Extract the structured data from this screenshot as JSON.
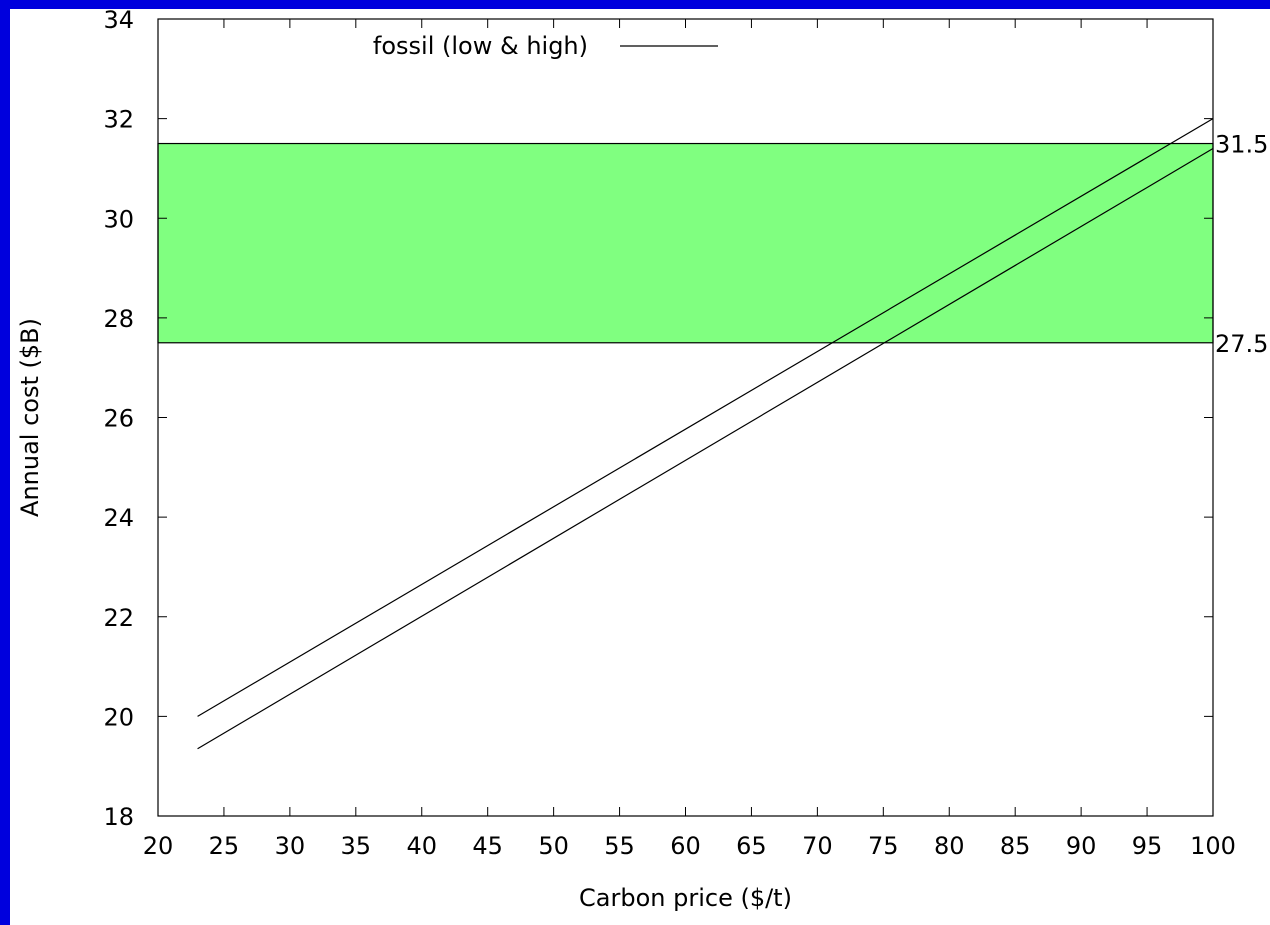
{
  "colors": {
    "background": "#0000dd",
    "plot_background": "#ffffff",
    "band_fill": "#80ff80",
    "line": "#000000"
  },
  "chart_data": {
    "type": "line",
    "title": "",
    "xlabel": "Carbon price ($/t)",
    "ylabel": "Annual cost ($B)",
    "xlim": [
      20,
      100
    ],
    "ylim": [
      18,
      34
    ],
    "x_ticks": [
      20,
      25,
      30,
      35,
      40,
      45,
      50,
      55,
      60,
      65,
      70,
      75,
      80,
      85,
      90,
      95,
      100
    ],
    "y_ticks": [
      18,
      20,
      22,
      24,
      26,
      28,
      30,
      32,
      34
    ],
    "grid": false,
    "legend": {
      "position": "top-left",
      "label": "fossil (low & high)"
    },
    "series": [
      {
        "name": "fossil (low & high)",
        "x": [
          23,
          100
        ],
        "y": [
          20.0,
          32.0
        ]
      },
      {
        "x": [
          23,
          100
        ],
        "y": [
          19.35,
          31.4
        ]
      }
    ],
    "band": {
      "y_low": 27.5,
      "y_high": 31.5,
      "fill": "#80ff80"
    },
    "annotations": [
      {
        "text": "31.5",
        "y": 31.5
      },
      {
        "text": "27.5",
        "y": 27.5
      }
    ]
  }
}
